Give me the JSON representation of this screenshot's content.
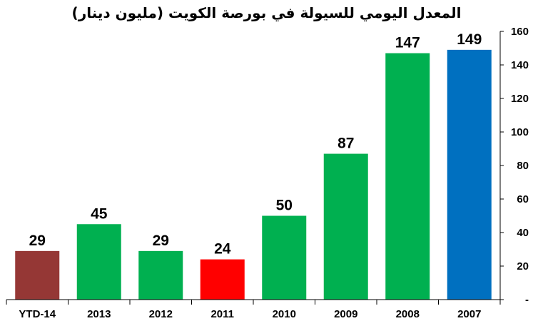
{
  "chart_data": {
    "type": "bar",
    "title": "المعدل اليومي للسيولة في بورصة الكويت (مليون دينار)",
    "categories": [
      "YTD-14",
      "2013",
      "2012",
      "2011",
      "2010",
      "2009",
      "2008",
      "2007"
    ],
    "values": [
      29,
      45,
      29,
      24,
      50,
      87,
      147,
      149
    ],
    "bar_colors": [
      "#953735",
      "#00B050",
      "#00B050",
      "#FF0000",
      "#00B050",
      "#00B050",
      "#00B050",
      "#0070C0"
    ],
    "ylim": [
      0,
      160
    ],
    "yticks": [
      0,
      20,
      40,
      60,
      80,
      100,
      120,
      140,
      160
    ],
    "ytick_labels": [
      "-",
      "20",
      "40",
      "60",
      "80",
      "100",
      "120",
      "140",
      "160"
    ],
    "y_axis_position": "right",
    "grid": false,
    "legend": "none",
    "xlabel": "",
    "ylabel": ""
  }
}
